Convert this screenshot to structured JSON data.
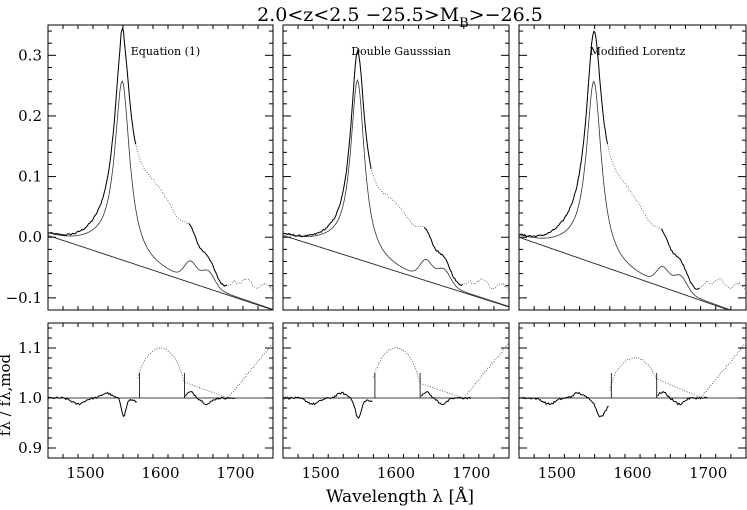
{
  "figure": {
    "title_parts": [
      "2.0<z<2.5 −25.5>M",
      "B",
      ">−26.5"
    ],
    "xlabel": "Wavelength λ [Å]",
    "residual_ylabel": "fλ / fλ,mod"
  },
  "chart_data": [
    {
      "type": "line",
      "title": "Equation (1)",
      "xlim": [
        1450,
        1750
      ],
      "ylim": [
        -0.12,
        0.35
      ],
      "xticks": [
        1500,
        1600,
        1700
      ],
      "yticks": [
        -0.1,
        0.0,
        0.1,
        0.2,
        0.3
      ],
      "ytick_labels": [
        "−0.1",
        "0.0",
        "0.1",
        "0.2",
        "0.3"
      ],
      "params": {
        "continuum": [
          0.003,
          -0.12
        ],
        "civ_amp": 0.29,
        "civ_gamma": 12,
        "ab_w": 1.05,
        "ab_amp": 0.12,
        "ab_center": 1590,
        "ab_sigma": 40,
        "heii_amp": 0.03,
        "heii_center": 1640,
        "heii_sigma": 8,
        "shoulder_amp": 0.026,
        "tail": [
          -0.07,
          -0.085
        ],
        "res_dip": [
          1551,
          0.035,
          3
        ],
        "res_bump_center": 1600,
        "res_bump_amp": 0.1,
        "peak_spike": 0.012
      }
    },
    {
      "type": "line",
      "title": "Double Gausssian",
      "xlim": [
        1450,
        1750
      ],
      "ylim": [
        -0.12,
        0.35
      ],
      "xticks": [
        1500,
        1600,
        1700
      ],
      "params": {
        "continuum": [
          0.003,
          -0.115
        ],
        "civ_amp": 0.29,
        "civ_gamma": 11,
        "ab_w": 1.0,
        "ab_amp": 0.1,
        "ab_center": 1595,
        "ab_sigma": 38,
        "heii_amp": 0.03,
        "heii_center": 1640,
        "heii_sigma": 8,
        "shoulder_amp": 0.026,
        "tail": [
          -0.07,
          -0.085
        ],
        "res_dip": [
          1550,
          0.04,
          4
        ],
        "res_bump_center": 1600,
        "res_bump_amp": 0.1,
        "peak_spike": 0.0
      }
    },
    {
      "type": "line",
      "title": "Modified Lorentz",
      "xlim": [
        1450,
        1750
      ],
      "ylim": [
        -0.12,
        0.35
      ],
      "xticks": [
        1500,
        1600,
        1700
      ],
      "params": {
        "continuum": [
          0.0,
          -0.13
        ],
        "civ_amp": 0.295,
        "civ_gamma": 12,
        "ab_w": 1.05,
        "ab_amp": 0.12,
        "ab_center": 1588,
        "ab_sigma": 42,
        "heii_amp": 0.028,
        "heii_center": 1640,
        "heii_sigma": 8,
        "shoulder_amp": 0.026,
        "tail": [
          -0.07,
          -0.085
        ],
        "res_dip": [
          1558,
          0.035,
          6
        ],
        "res_bump_center": 1603,
        "res_bump_amp": 0.08,
        "peak_spike": 0.0
      }
    },
    {
      "type": "line",
      "panel": "residual-1",
      "xlim": [
        1450,
        1750
      ],
      "ylim": [
        0.88,
        1.15
      ],
      "xticks": [
        1500,
        1600,
        1700
      ],
      "yticks": [
        0.9,
        1.0,
        1.1
      ],
      "ytick_labels": [
        "0.9",
        "1.0",
        "1.1"
      ],
      "reference_y": 1.0
    },
    {
      "type": "line",
      "panel": "residual-2",
      "xlim": [
        1450,
        1750
      ],
      "ylim": [
        0.88,
        1.15
      ],
      "xticks": [
        1500,
        1600,
        1700
      ],
      "reference_y": 1.0
    },
    {
      "type": "line",
      "panel": "residual-3",
      "xlim": [
        1450,
        1750
      ],
      "ylim": [
        0.88,
        1.15
      ],
      "xticks": [
        1500,
        1600,
        1700
      ],
      "reference_y": 1.0
    }
  ]
}
